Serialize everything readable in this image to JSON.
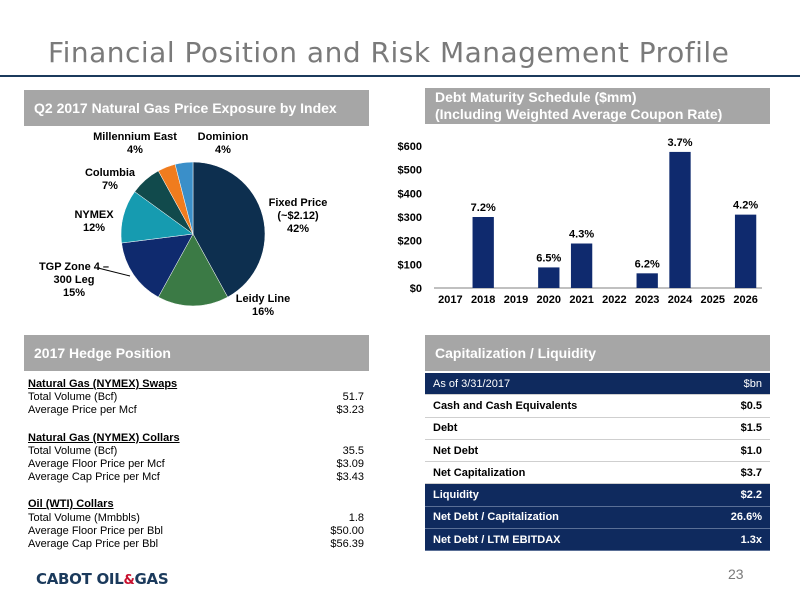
{
  "title": "Financial Position and Risk Management Profile",
  "sections": {
    "price_exposure": "Q2 2017 Natural Gas Price Exposure by Index",
    "debt_line1": "Debt Maturity Schedule ($mm)",
    "debt_line2": "(Including Weighted Average Coupon Rate)",
    "hedge": "2017 Hedge Position",
    "cap": "Capitalization / Liquidity"
  },
  "chart_data": [
    {
      "type": "pie",
      "slices": [
        {
          "name": "Fixed Price (~$2.12)",
          "value": 42,
          "label_lines": [
            "Fixed Price",
            "(~$2.12)",
            "42%"
          ],
          "color": "#0d2f4f"
        },
        {
          "name": "Leidy Line",
          "value": 16,
          "label_lines": [
            "Leidy Line",
            "16%"
          ],
          "color": "#3b7a45"
        },
        {
          "name": "TGP Zone 4 – 300 Leg",
          "value": 15,
          "label_lines": [
            "TGP Zone 4 –",
            "300 Leg",
            "15%"
          ],
          "color": "#0f2a6e"
        },
        {
          "name": "NYMEX",
          "value": 12,
          "label_lines": [
            "NYMEX",
            "12%"
          ],
          "color": "#169bb0"
        },
        {
          "name": "Columbia",
          "value": 7,
          "label_lines": [
            "Columbia",
            "7%"
          ],
          "color": "#114a4c"
        },
        {
          "name": "Millennium East",
          "value": 4,
          "label_lines": [
            "Millennium East",
            "4%"
          ],
          "color": "#f07c1e"
        },
        {
          "name": "Dominion",
          "value": 4,
          "label_lines": [
            "Dominion",
            "4%"
          ],
          "color": "#3a8fc9"
        }
      ]
    },
    {
      "type": "bar",
      "categories": [
        "2017",
        "2018",
        "2019",
        "2020",
        "2021",
        "2022",
        "2023",
        "2024",
        "2025",
        "2026"
      ],
      "values": [
        0,
        300,
        0,
        87,
        188,
        0,
        62,
        575,
        0,
        310
      ],
      "data_labels": [
        "",
        "7.2%",
        "",
        "6.5%",
        "4.3%",
        "",
        "6.2%",
        "3.7%",
        "",
        "4.2%"
      ],
      "y_ticks": [
        "$0",
        "$100",
        "$200",
        "$300",
        "$400",
        "$500",
        "$600"
      ],
      "ylim": [
        0,
        600
      ],
      "bar_color": "#0f2a6e"
    }
  ],
  "hedge": [
    {
      "title": "Natural Gas (NYMEX) Swaps",
      "rows": [
        {
          "label": "Total Volume (Bcf)",
          "value": "51.7"
        },
        {
          "label": "Average Price per Mcf",
          "value": "$3.23"
        }
      ]
    },
    {
      "title": "Natural Gas (NYMEX) Collars",
      "rows": [
        {
          "label": "Total Volume (Bcf)",
          "value": "35.5"
        },
        {
          "label": "Average Floor Price per Mcf",
          "value": "$3.09"
        },
        {
          "label": "Average Cap Price per Mcf",
          "value": "$3.43"
        }
      ]
    },
    {
      "title": "Oil (WTI) Collars",
      "rows": [
        {
          "label": "Total Volume (Mmbbls)",
          "value": "1.8"
        },
        {
          "label": "Average Floor Price per Bbl",
          "value": "$50.00"
        },
        {
          "label": "Average Cap Price per Bbl",
          "value": "$56.39"
        }
      ]
    }
  ],
  "cap_table": {
    "header": {
      "label": "As of 3/31/2017",
      "value": "$bn"
    },
    "rows": [
      {
        "label": "Cash and Cash Equivalents",
        "value": "$0.5",
        "dark": false
      },
      {
        "label": "Debt",
        "value": "$1.5",
        "dark": false
      },
      {
        "label": "Net Debt",
        "value": "$1.0",
        "dark": false
      },
      {
        "label": "Net Capitalization",
        "value": "$3.7",
        "dark": false
      },
      {
        "label": "Liquidity",
        "value": "$2.2",
        "dark": true
      },
      {
        "label": "Net Debt / Capitalization",
        "value": "26.6%",
        "dark": true
      },
      {
        "label": "Net Debt / LTM EBITDAX",
        "value": "1.3x",
        "dark": true
      }
    ]
  },
  "footer": {
    "logo_left": "CABOT OIL",
    "logo_amp": "&",
    "logo_right": "GAS",
    "page": "23"
  }
}
